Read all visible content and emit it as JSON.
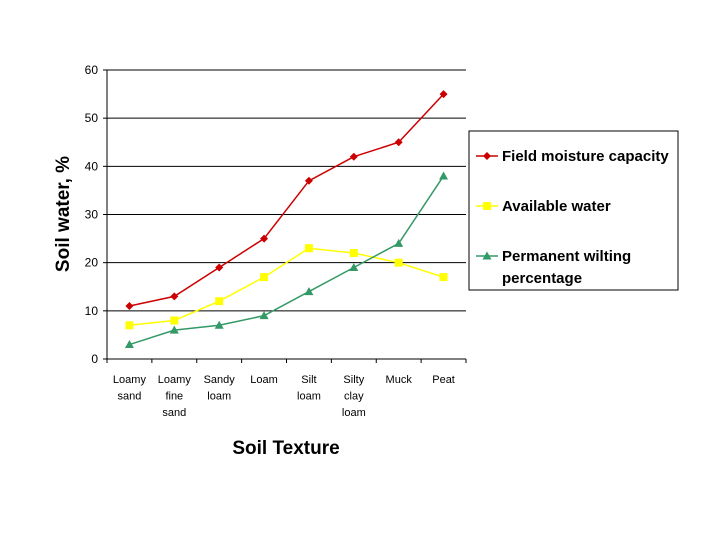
{
  "chart_data": {
    "type": "line",
    "xlabel": "Soil Texture",
    "ylabel": "Soil water, %",
    "ylim": [
      0,
      60
    ],
    "yticks": [
      "0",
      "10",
      "20",
      "30",
      "40",
      "50",
      "60"
    ],
    "grid": true,
    "legend_position": "right",
    "categories": [
      [
        "Loamy",
        "sand"
      ],
      [
        "Loamy",
        "fine",
        "sand"
      ],
      [
        "Sandy",
        "loam"
      ],
      [
        "Loam"
      ],
      [
        "Silt",
        "loam"
      ],
      [
        "Silty",
        "clay",
        "loam"
      ],
      [
        "Muck"
      ],
      [
        "Peat"
      ]
    ],
    "series": [
      {
        "name": "Field moisture capacity",
        "legend_lines": [
          "Field moisture capacity"
        ],
        "values": [
          11,
          13,
          19,
          25,
          37,
          42,
          45,
          55
        ],
        "color": "#cc0000",
        "marker": "diamond"
      },
      {
        "name": "Available water",
        "legend_lines": [
          "Available water"
        ],
        "values": [
          7,
          8,
          12,
          17,
          23,
          22,
          20,
          17
        ],
        "color": "#ffff00",
        "marker": "square"
      },
      {
        "name": "Permanent wilting percentage",
        "legend_lines": [
          "Permanent wilting",
          "percentage"
        ],
        "values": [
          3,
          6,
          7,
          9,
          14,
          19,
          24,
          38
        ],
        "color": "#339966",
        "marker": "triangle"
      }
    ]
  }
}
